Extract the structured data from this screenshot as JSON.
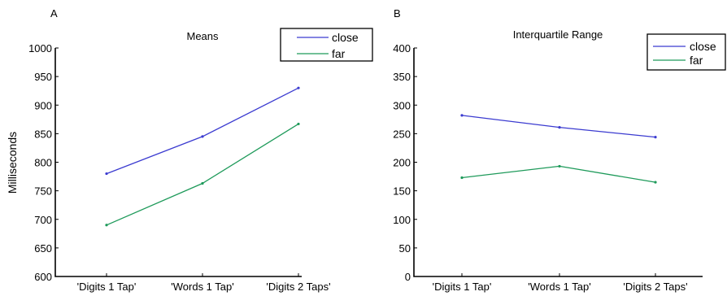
{
  "chart_data": [
    {
      "panel_label": "A",
      "type": "line",
      "title": "Means",
      "xlabel": "",
      "ylabel": "Milliseconds",
      "categories": [
        "'Digits 1 Tap'",
        "'Words 1 Tap'",
        "'Digits 2 Taps'"
      ],
      "ylim": [
        600,
        1000
      ],
      "yticks": [
        600,
        650,
        700,
        750,
        800,
        850,
        900,
        950,
        1000
      ],
      "series": [
        {
          "name": "close",
          "color": "#3b3bd0",
          "values": [
            780,
            845,
            930
          ]
        },
        {
          "name": "far",
          "color": "#1e9a5a",
          "values": [
            690,
            763,
            867
          ]
        }
      ],
      "legend": "top-right",
      "grid": false
    },
    {
      "panel_label": "B",
      "type": "line",
      "title": "Interquartile Range",
      "xlabel": "",
      "ylabel": "",
      "categories": [
        "'Digits 1 Tap'",
        "'Words 1 Tap'",
        "'Digits 2 Taps'"
      ],
      "ylim": [
        0,
        400
      ],
      "yticks": [
        0,
        50,
        100,
        150,
        200,
        250,
        300,
        350,
        400
      ],
      "series": [
        {
          "name": "close",
          "color": "#3b3bd0",
          "values": [
            282,
            261,
            244
          ]
        },
        {
          "name": "far",
          "color": "#1e9a5a",
          "values": [
            173,
            193,
            165
          ]
        }
      ],
      "legend": "top-right",
      "grid": false
    }
  ]
}
